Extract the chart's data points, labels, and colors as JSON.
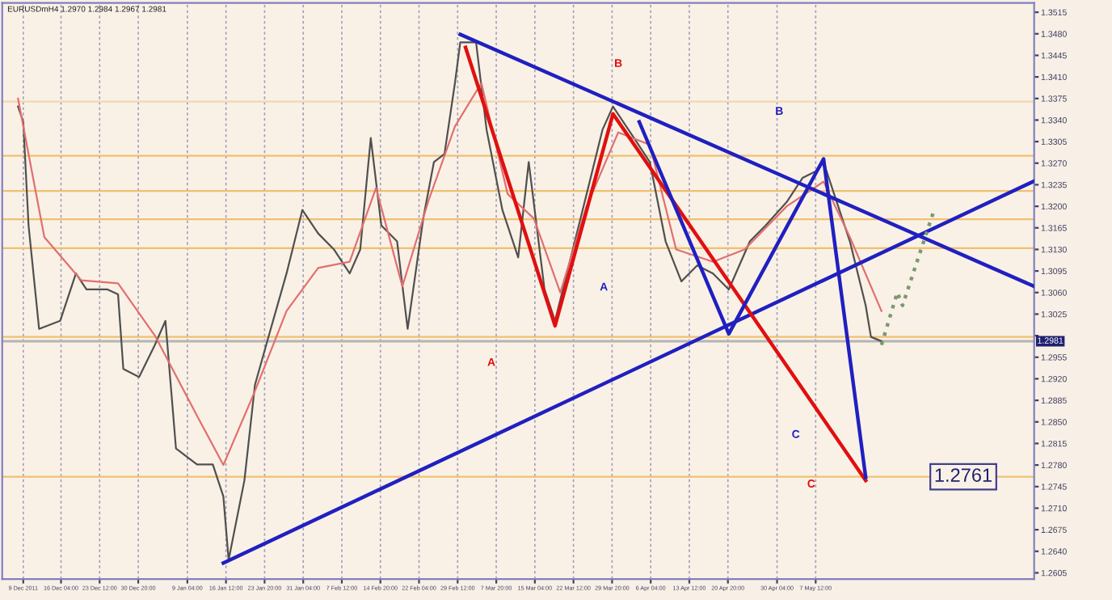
{
  "chart_data": {
    "type": "line",
    "title": "EURUSDmH4 1.2970 1.2984 1.2967 1.2981",
    "xlim": [
      "2011-12-05",
      "2012-06-18"
    ],
    "ylim": [
      1.2595,
      1.353
    ],
    "xticks": [
      {
        "value": "2011-12-09T00:00",
        "label": "9 Dec 2011"
      },
      {
        "value": "2011-12-16T04:00",
        "label": "16 Dec 04:00"
      },
      {
        "value": "2011-12-23T12:00",
        "label": "23 Dec 12:00"
      },
      {
        "value": "2011-12-30T20:00",
        "label": "30 Dec 20:00"
      },
      {
        "value": "2012-01-09T04:00",
        "label": "9 Jan 04:00"
      },
      {
        "value": "2012-01-16T12:00",
        "label": "16 Jan 12:00"
      },
      {
        "value": "2012-01-23T20:00",
        "label": "23 Jan 20:00"
      },
      {
        "value": "2012-01-31T04:00",
        "label": "31 Jan 04:00"
      },
      {
        "value": "2012-02-07T12:00",
        "label": "7 Feb 12:00"
      },
      {
        "value": "2012-02-14T20:00",
        "label": "14 Feb 20:00"
      },
      {
        "value": "2012-02-22T04:00",
        "label": "22 Feb 04:00"
      },
      {
        "value": "2012-02-29T12:00",
        "label": "29 Feb 12:00"
      },
      {
        "value": "2012-03-07T20:00",
        "label": "7 Mar 20:00"
      },
      {
        "value": "2012-03-15T04:00",
        "label": "15 Mar 04:00"
      },
      {
        "value": "2012-03-22T12:00",
        "label": "22 Mar 12:00"
      },
      {
        "value": "2012-03-29T20:00",
        "label": "29 Mar 20:00"
      },
      {
        "value": "2012-04-06T04:00",
        "label": "6 Apr 04:00"
      },
      {
        "value": "2012-04-13T12:00",
        "label": "13 Apr 12:00"
      },
      {
        "value": "2012-04-20T20:00",
        "label": "20 Apr 20:00"
      },
      {
        "value": "2012-04-30T04:00",
        "label": "30 Apr 04:00"
      },
      {
        "value": "2012-05-07T12:00",
        "label": "7 May 12:00"
      }
    ],
    "yticks": [
      1.2605,
      {
        "value": 1.264,
        "label": "1.2640"
      },
      1.2675,
      {
        "value": 1.271,
        "label": "1.2710"
      },
      1.2745,
      {
        "value": 1.278,
        "label": "1.2780"
      },
      1.2815,
      {
        "value": 1.285,
        "label": "1.2850"
      },
      1.2885,
      {
        "value": 1.292,
        "label": "1.2920"
      },
      1.2955,
      {
        "value": 1.299,
        "label": null
      },
      1.3025,
      {
        "value": 1.306,
        "label": "1.3060"
      },
      1.3095,
      {
        "value": 1.313,
        "label": "1.3130"
      },
      1.3165,
      {
        "value": 1.32,
        "label": "1.3200"
      },
      1.3235,
      {
        "value": 1.327,
        "label": "1.3270"
      },
      1.3305,
      {
        "value": 1.334,
        "label": "1.3340"
      },
      1.3375,
      {
        "value": 1.341,
        "label": "1.3410"
      },
      1.3445,
      {
        "value": 1.348,
        "label": "1.3480"
      },
      1.3515
    ],
    "grid": "x",
    "legend": false,
    "marker": "none",
    "series": [
      {
        "color": "#505050",
        "x": [
          "2011-12-08",
          "2011-12-09",
          "2011-12-10",
          "2011-12-12",
          "2011-12-16",
          "2011-12-19",
          "2011-12-21",
          "2011-12-25",
          "2011-12-27",
          "2011-12-28",
          "2011-12-31",
          "2012-01-03",
          "2012-01-05",
          "2012-01-07",
          "2012-01-11",
          "2012-01-14",
          "2012-01-16",
          "2012-01-17",
          "2012-01-20",
          "2012-01-22",
          "2012-01-25",
          "2012-01-28",
          "2012-01-31",
          "2012-02-03",
          "2012-02-06",
          "2012-02-09",
          "2012-02-11",
          "2012-02-13",
          "2012-02-15",
          "2012-02-18",
          "2012-02-20",
          "2012-02-23",
          "2012-02-25",
          "2012-02-27",
          "2012-02-29",
          "2012-03-01",
          "2012-03-04",
          "2012-03-06",
          "2012-03-09",
          "2012-03-12",
          "2012-03-14",
          "2012-03-17",
          "2012-03-19",
          "2012-03-22",
          "2012-03-25",
          "2012-03-28",
          "2012-03-30",
          "2012-04-03",
          "2012-04-06",
          "2012-04-09",
          "2012-04-12",
          "2012-04-15",
          "2012-04-18",
          "2012-04-21",
          "2012-04-25",
          "2012-04-28",
          "2012-05-02",
          "2012-05-05",
          "2012-05-08",
          "2012-05-09",
          "2012-05-11",
          "2012-05-14",
          "2012-05-17",
          "2012-05-18",
          "2012-05-20"
        ],
        "values": [
          1.3362,
          1.3337,
          1.3169,
          1.3001,
          1.3014,
          1.3091,
          1.3065,
          1.3065,
          1.3057,
          1.2936,
          1.2923,
          1.2975,
          1.3014,
          1.2807,
          1.2781,
          1.2781,
          1.2729,
          1.2626,
          1.2755,
          1.291,
          1.3001,
          1.3091,
          1.3194,
          1.3156,
          1.313,
          1.3091,
          1.313,
          1.3311,
          1.3169,
          1.3143,
          1.3001,
          1.3182,
          1.3272,
          1.3285,
          1.3401,
          1.3466,
          1.3466,
          1.3324,
          1.3194,
          1.3117,
          1.3272,
          1.3065,
          1.3014,
          1.3117,
          1.322,
          1.3324,
          1.3362,
          1.3311,
          1.3272,
          1.3143,
          1.3078,
          1.3104,
          1.3091,
          1.3065,
          1.3143,
          1.3169,
          1.3207,
          1.3246,
          1.3259,
          1.3272,
          1.322,
          1.3143,
          1.3039,
          1.2988,
          1.2981
        ]
      },
      {
        "color": "#e07070",
        "x": [
          "2011-12-08",
          "2011-12-13",
          "2011-12-20",
          "2011-12-27",
          "2012-01-03",
          "2012-01-11",
          "2012-01-16",
          "2012-01-22",
          "2012-01-28",
          "2012-02-03",
          "2012-02-09",
          "2012-02-14",
          "2012-02-19",
          "2012-02-24",
          "2012-02-29",
          "2012-03-05",
          "2012-03-10",
          "2012-03-15",
          "2012-03-20",
          "2012-03-25",
          "2012-03-31",
          "2012-04-06",
          "2012-04-11",
          "2012-04-18",
          "2012-04-24",
          "2012-05-02",
          "2012-05-09",
          "2012-05-14",
          "2012-05-20"
        ],
        "values": [
          1.3375,
          1.315,
          1.308,
          1.3075,
          1.299,
          1.286,
          1.278,
          1.29,
          1.303,
          1.31,
          1.311,
          1.323,
          1.307,
          1.321,
          1.333,
          1.34,
          1.322,
          1.318,
          1.306,
          1.32,
          1.332,
          1.33,
          1.313,
          1.311,
          1.313,
          1.32,
          1.324,
          1.315,
          1.303
        ]
      },
      {
        "color": "#2020c0",
        "x": [
          "2012-01-16",
          "2012-06-18"
        ],
        "values": [
          1.2621,
          1.3241
        ]
      },
      {
        "color": "#2020c0",
        "x": [
          "2012-03-01",
          "2012-06-18"
        ],
        "values": [
          1.3479,
          1.307
        ]
      },
      {
        "color": "#e01010",
        "x": [
          "2012-03-02",
          "2012-03-19",
          "2012-03-30",
          "2012-05-17"
        ],
        "values": [
          1.3458,
          1.3006,
          1.335,
          1.2755
        ]
      },
      {
        "color": "#2020c0",
        "x": [
          "2012-04-04",
          "2012-04-21",
          "2012-05-09",
          "2012-05-17"
        ],
        "values": [
          1.3337,
          1.2993,
          1.3277,
          1.276
        ]
      },
      {
        "color": "#7a9a70",
        "line_style": "dotted",
        "x": [
          "2012-05-20",
          "2012-05-23",
          "2012-05-24",
          "2012-05-30"
        ],
        "values": [
          1.2975,
          1.306,
          1.3039,
          1.3194
        ]
      }
    ],
    "ref_lines": [
      {
        "axis": "y",
        "value": 1.337,
        "color": "#f0d8b0"
      },
      {
        "axis": "y",
        "value": 1.3282,
        "color": "#f0c070"
      },
      {
        "axis": "y",
        "value": 1.3225,
        "color": "#f0c070"
      },
      {
        "axis": "y",
        "value": 1.3179,
        "color": "#f0c070"
      },
      {
        "axis": "y",
        "value": 1.3132,
        "color": "#f0c070"
      },
      {
        "axis": "y",
        "value": 1.2988,
        "color": "#f0c070"
      },
      {
        "axis": "y",
        "value": 1.2761,
        "color": "#f0c070"
      },
      {
        "axis": "y",
        "value": 1.2981,
        "label": "1.2981",
        "color": "#b4b4b4"
      }
    ],
    "annotations": [
      "B",
      "A",
      "C",
      "A",
      "B",
      "C",
      {
        "text": "1.2761",
        "x": "2012-05-30",
        "y": 1.2761
      }
    ]
  }
}
